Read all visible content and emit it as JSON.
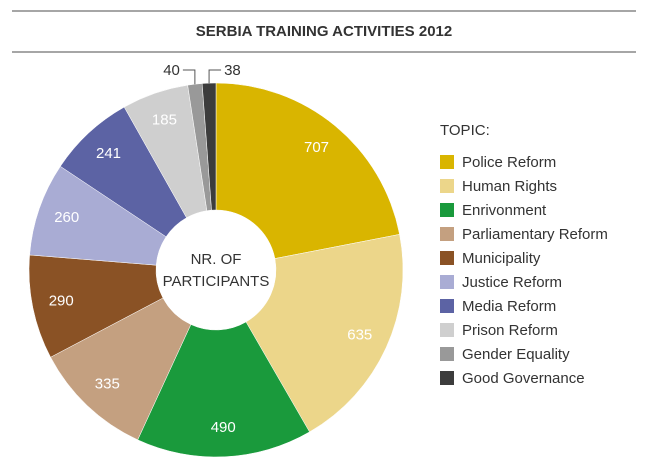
{
  "chart_data": {
    "type": "donut",
    "title": "SERBIA TRAINING ACTIVITIES 2012",
    "center_label": [
      "NR. OF",
      "PARTICIPANTS"
    ],
    "legend_title": "TOPIC:",
    "categories": [
      "Police Reform",
      "Human Rights",
      "Enrivonment",
      "Parliamentary Reform",
      "Municipality",
      "Justice Reform",
      "Media Reform",
      "Prison Reform",
      "Gender Equality",
      "Good Governance"
    ],
    "values": [
      707,
      635,
      490,
      335,
      290,
      260,
      241,
      185,
      40,
      38
    ],
    "colors": [
      "#d9b500",
      "#ecd68a",
      "#1a9a3c",
      "#c4a080",
      "#8a5225",
      "#a9acd4",
      "#5c63a4",
      "#cfcfcf",
      "#999999",
      "#3c3c3c"
    ]
  }
}
